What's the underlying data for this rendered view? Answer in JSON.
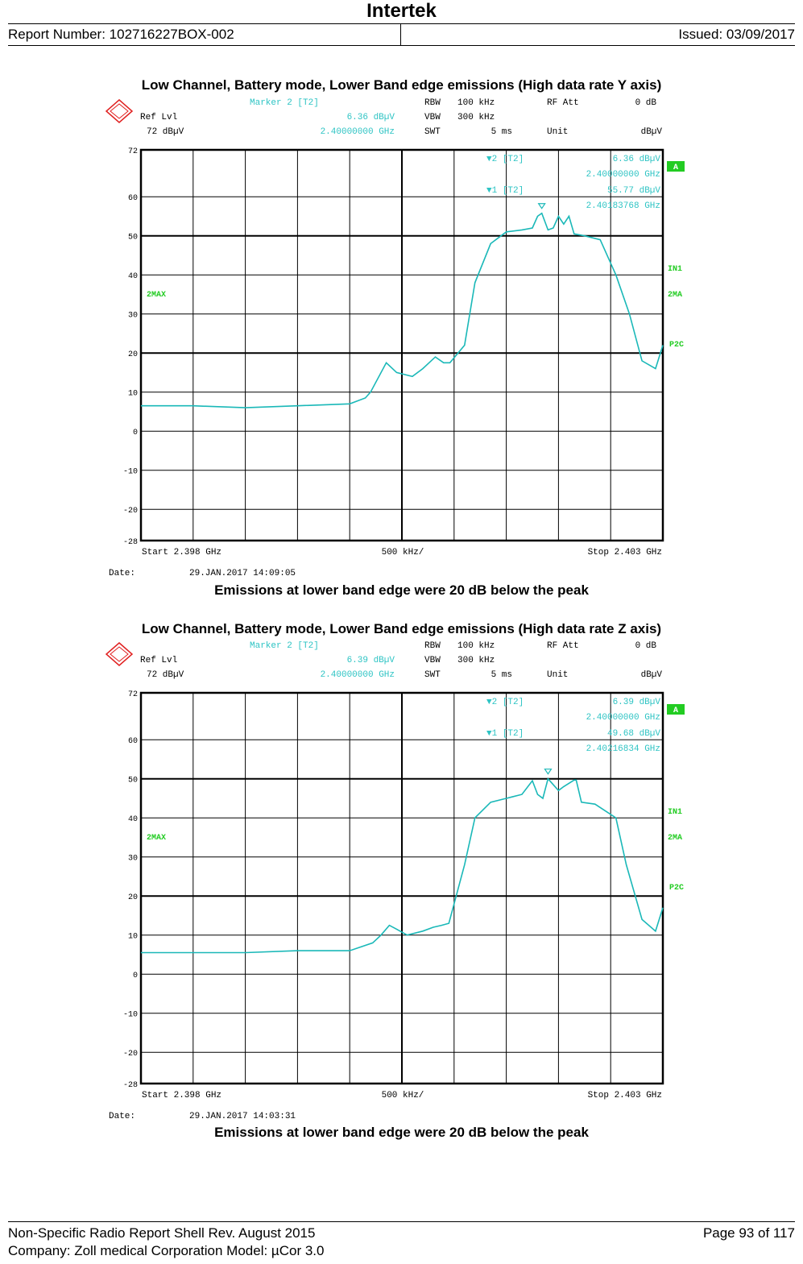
{
  "header": {
    "company": "Intertek",
    "report_number": "Report Number: 102716227BOX-002",
    "issued": "Issued: 03/09/2017"
  },
  "footer": {
    "shell": "Non-Specific Radio Report Shell Rev. August 2015",
    "page": "Page 93 of 117",
    "company": "Company: Zoll medical Corporation Model: µCor 3.0"
  },
  "colors": {
    "trace": "#1ab8b8",
    "grid": "#000000",
    "marker_label": "#2ec4c4",
    "green_label": "#22cc22"
  },
  "plots": [
    {
      "title": "Low Channel, Battery mode, Lower Band edge emissions (High data rate Y axis)",
      "caption": "Emissions at lower band edge were 20 dB below the peak",
      "marker_title": "Marker 2 [T2]",
      "ref_lvl_label": "Ref Lvl",
      "ref_lvl_value": "72 dBµV",
      "marker_level": "6.36 dBµV",
      "marker_freq": "2.40000000 GHz",
      "rbw_label": "RBW",
      "rbw": "100 kHz",
      "vbw_label": "VBW",
      "vbw": "300 kHz",
      "swt_label": "SWT",
      "swt": "5 ms",
      "rfatt_label": "RF Att",
      "rfatt": "0 dB",
      "unit_label": "Unit",
      "unit": "dBµV",
      "m2_label": "▼2 [T2]",
      "m2_level": "6.36 dBµV",
      "m2_freq": "2.40000000 GHz",
      "m1_label": "▼1 [T2]",
      "m1_level": "55.77 dBµV",
      "m1_freq": "2.40183768 GHz",
      "start": "Start 2.398 GHz",
      "span": "500 kHz/",
      "stop": "Stop 2.403 GHz",
      "date_label": "Date:",
      "date": "29.JAN.2017  14:09:05",
      "side_a": "A",
      "side_in1": "IN1",
      "side_2ma": "2MA",
      "side_p2c": "P2C",
      "left_2max": "2MAX",
      "chart_data": {
        "type": "line",
        "xlim": [
          2.398,
          2.403
        ],
        "ylim": [
          -28,
          72
        ],
        "yticks": [
          72,
          60,
          50,
          40,
          30,
          20,
          10,
          0,
          -10,
          -20,
          -28
        ],
        "series": [
          {
            "x": [
              2.398,
              2.3985,
              2.399,
              2.3995,
              2.4,
              2.40015,
              2.4002,
              2.40035,
              2.40045,
              2.4006,
              2.4007,
              2.40082,
              2.4009,
              2.40096,
              2.4011,
              2.4012,
              2.40135,
              2.4015,
              2.40165,
              2.40175,
              2.4018,
              2.40184,
              2.4019,
              2.40195,
              2.402,
              2.40205,
              2.4021,
              2.40215,
              2.40225,
              2.4024,
              2.40255,
              2.40268,
              2.4028,
              2.40293,
              2.403
            ],
            "y": [
              6.5,
              6.5,
              6.0,
              6.5,
              7.0,
              8.5,
              10.0,
              17.5,
              15.0,
              14.0,
              16.0,
              19.0,
              17.5,
              17.5,
              22.0,
              38.0,
              48.0,
              51.0,
              51.5,
              52.0,
              55.0,
              55.77,
              51.5,
              52.0,
              55.0,
              53.0,
              55.0,
              50.5,
              50.0,
              49.0,
              40.0,
              30.0,
              18.0,
              16.0,
              22.0
            ]
          }
        ]
      }
    },
    {
      "title": "Low Channel, Battery mode, Lower Band edge emissions (High data rate Z axis)",
      "caption": "Emissions at lower band edge were 20 dB below the peak",
      "marker_title": "Marker 2 [T2]",
      "ref_lvl_label": "Ref Lvl",
      "ref_lvl_value": "72 dBµV",
      "marker_level": "6.39 dBµV",
      "marker_freq": "2.40000000 GHz",
      "rbw_label": "RBW",
      "rbw": "100 kHz",
      "vbw_label": "VBW",
      "vbw": "300 kHz",
      "swt_label": "SWT",
      "swt": "5 ms",
      "rfatt_label": "RF Att",
      "rfatt": "0 dB",
      "unit_label": "Unit",
      "unit": "dBµV",
      "m2_label": "▼2 [T2]",
      "m2_level": "6.39 dBµV",
      "m2_freq": "2.40000000 GHz",
      "m1_label": "▼1 [T2]",
      "m1_level": "49.68 dBµV",
      "m1_freq": "2.40216834 GHz",
      "start": "Start 2.398 GHz",
      "span": "500 kHz/",
      "stop": "Stop 2.403 GHz",
      "date_label": "Date:",
      "date": "29.JAN.2017  14:03:31",
      "side_a": "A",
      "side_in1": "IN1",
      "side_2ma": "2MA",
      "side_p2c": "P2C",
      "left_2max": "2MAX",
      "chart_data": {
        "type": "line",
        "xlim": [
          2.398,
          2.403
        ],
        "ylim": [
          -28,
          72
        ],
        "yticks": [
          72,
          60,
          50,
          40,
          30,
          20,
          10,
          0,
          -10,
          -20,
          -28
        ],
        "series": [
          {
            "x": [
              2.398,
              2.3985,
              2.399,
              2.3995,
              2.4,
              2.40022,
              2.4003,
              2.40038,
              2.40045,
              2.40055,
              2.4007,
              2.4008,
              2.40088,
              2.40095,
              2.4011,
              2.4012,
              2.40135,
              2.4015,
              2.40165,
              2.40175,
              2.4018,
              2.40185,
              2.4019,
              2.402,
              2.40205,
              2.40215,
              2.40217,
              2.40222,
              2.40235,
              2.40255,
              2.40265,
              2.4028,
              2.40293,
              2.403
            ],
            "y": [
              5.5,
              5.5,
              5.5,
              6.0,
              6.0,
              8.0,
              10.0,
              12.5,
              11.5,
              10.0,
              11.0,
              12.0,
              12.5,
              13.0,
              28.0,
              40.0,
              44.0,
              45.0,
              46.0,
              49.5,
              46.0,
              45.0,
              50.0,
              47.0,
              48.0,
              49.68,
              49.68,
              44.0,
              43.5,
              40.0,
              28.0,
              14.0,
              11.0,
              17.0
            ]
          }
        ]
      }
    }
  ]
}
